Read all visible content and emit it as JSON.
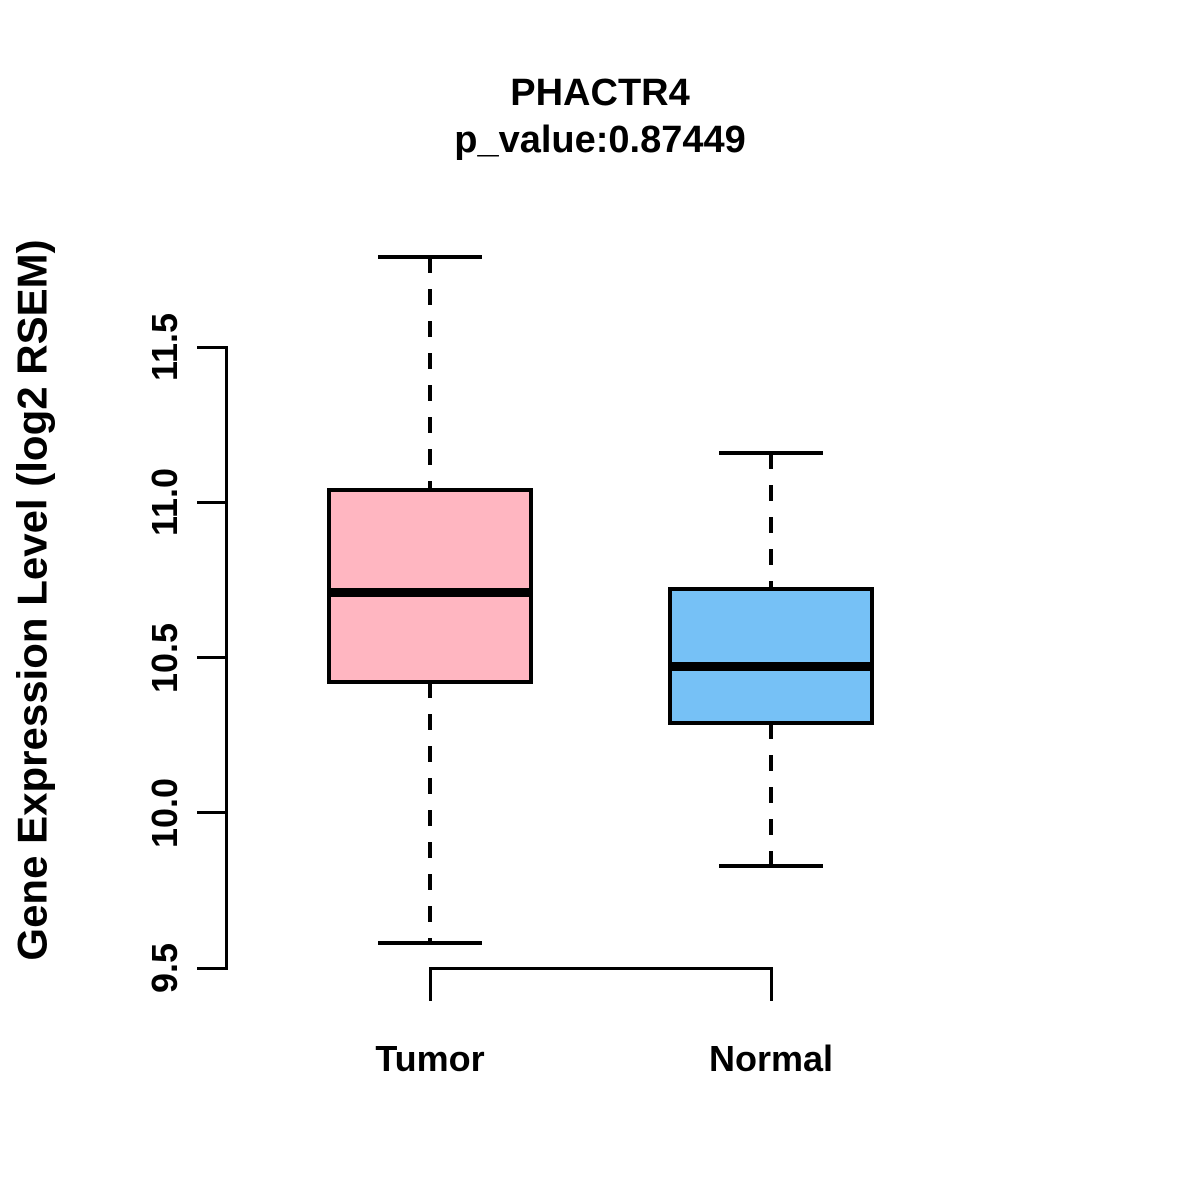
{
  "title": "PHACTR4",
  "subtitle": "p_value:0.87449",
  "chart_data": {
    "type": "boxplot",
    "title": "PHACTR4",
    "subtitle": "p_value:0.87449",
    "xlabel": "",
    "ylabel": "Gene Expression Level (log2 RSEM)",
    "categories": [
      "Tumor",
      "Normal"
    ],
    "y_ticks": [
      9.5,
      10.0,
      10.5,
      11.0,
      11.5
    ],
    "ylim": [
      9.5,
      11.5
    ],
    "grid": "off",
    "legend": "none",
    "whisker_style": "dashed",
    "box_border_color": "#000000",
    "median_color": "#000000",
    "series": [
      {
        "name": "Tumor",
        "color": "#FFB6C1",
        "whisker_low": 9.58,
        "q1": 10.42,
        "median": 10.71,
        "q3": 11.04,
        "whisker_high": 11.79
      },
      {
        "name": "Normal",
        "color": "#76C1F6",
        "whisker_low": 9.83,
        "q1": 10.29,
        "median": 10.47,
        "q3": 10.72,
        "whisker_high": 11.16
      }
    ]
  }
}
